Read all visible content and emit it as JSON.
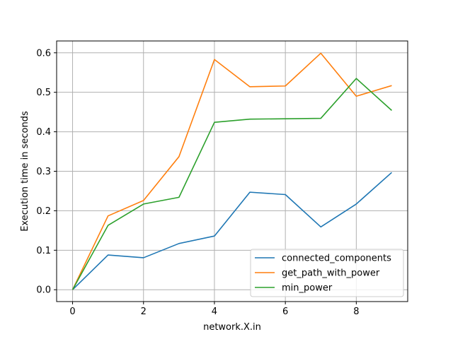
{
  "chart_data": {
    "type": "line",
    "title": "",
    "xlabel": "network.X.in",
    "ylabel": "Execution time in seconds",
    "xlim": [
      -0.45,
      9.45
    ],
    "ylim": [
      -0.03,
      0.63
    ],
    "xticks": [
      0,
      2,
      4,
      6,
      8
    ],
    "xtick_labels": [
      "0",
      "2",
      "4",
      "6",
      "8"
    ],
    "yticks": [
      0.0,
      0.1,
      0.2,
      0.3,
      0.4,
      0.5,
      0.6
    ],
    "ytick_labels": [
      "0.0",
      "0.1",
      "0.2",
      "0.3",
      "0.4",
      "0.5",
      "0.6"
    ],
    "grid": true,
    "legend_position": "lower-right",
    "x": [
      0,
      1,
      2,
      3,
      4,
      5,
      6,
      7,
      8,
      9
    ],
    "series": [
      {
        "name": "connected_components",
        "color": "#1f77b4",
        "values": [
          0.0,
          0.088,
          0.081,
          0.117,
          0.136,
          0.247,
          0.241,
          0.159,
          0.217,
          0.297
        ]
      },
      {
        "name": "get_path_with_power",
        "color": "#ff7f0e",
        "values": [
          0.0,
          0.187,
          0.226,
          0.337,
          0.583,
          0.514,
          0.516,
          0.599,
          0.49,
          0.517
        ]
      },
      {
        "name": "min_power",
        "color": "#2ca02c",
        "values": [
          0.0,
          0.163,
          0.217,
          0.234,
          0.424,
          0.432,
          0.433,
          0.434,
          0.535,
          0.454
        ]
      }
    ]
  }
}
